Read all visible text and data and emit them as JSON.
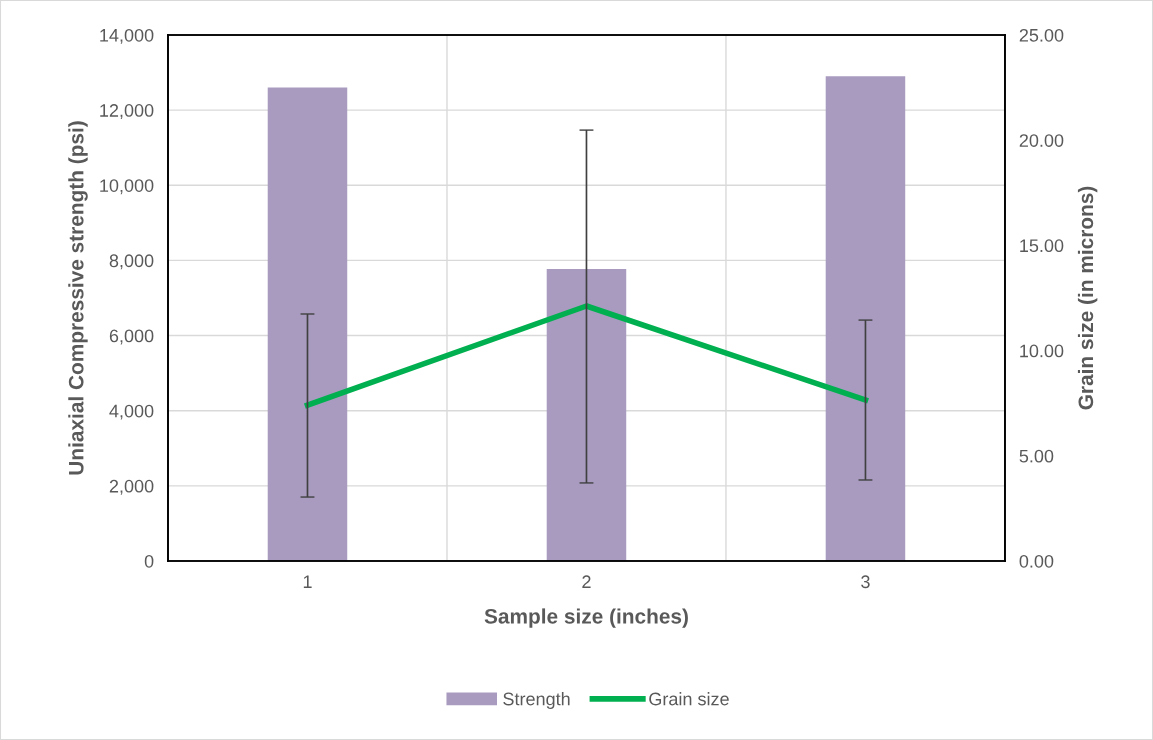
{
  "chart_data": {
    "type": "bar",
    "xlabel": "Sample size (inches)",
    "ylabel": "Uniaxial Compressive strength (psi)",
    "y2label": "Grain size (in microns)",
    "categories": [
      "1",
      "2",
      "3"
    ],
    "series": [
      {
        "name": "Strength",
        "color": "#a89bbf",
        "values": [
          12600,
          7770,
          12900
        ]
      },
      {
        "name": "Grain size",
        "type": "line",
        "axis": "y2",
        "color": "#00b050",
        "values": [
          7.41,
          12.12,
          7.65
        ],
        "errors": [
          [
            3.04,
            11.74
          ],
          [
            3.71,
            20.48
          ],
          [
            3.85,
            11.45
          ]
        ]
      }
    ],
    "ylim": [
      0,
      14000
    ],
    "yticks": [
      {
        "value": 0,
        "label": "0"
      },
      {
        "value": 2000,
        "label": "2,000"
      },
      {
        "value": 4000,
        "label": "4,000"
      },
      {
        "value": 6000,
        "label": "6,000"
      },
      {
        "value": 8000,
        "label": "8,000"
      },
      {
        "value": 10000,
        "label": "10,000"
      },
      {
        "value": 12000,
        "label": "12,000"
      },
      {
        "value": 14000,
        "label": "14,000"
      }
    ],
    "y2lim": [
      0,
      25
    ],
    "y2ticks": [
      {
        "value": 0,
        "label": "0.00"
      },
      {
        "value": 5,
        "label": "5.00"
      },
      {
        "value": 10,
        "label": "10.00"
      },
      {
        "value": 15,
        "label": "15.00"
      },
      {
        "value": 20,
        "label": "20.00"
      },
      {
        "value": 25,
        "label": "25.00"
      }
    ],
    "grid": true,
    "legend": "bottom",
    "marker": "none",
    "line_style": "solid"
  }
}
